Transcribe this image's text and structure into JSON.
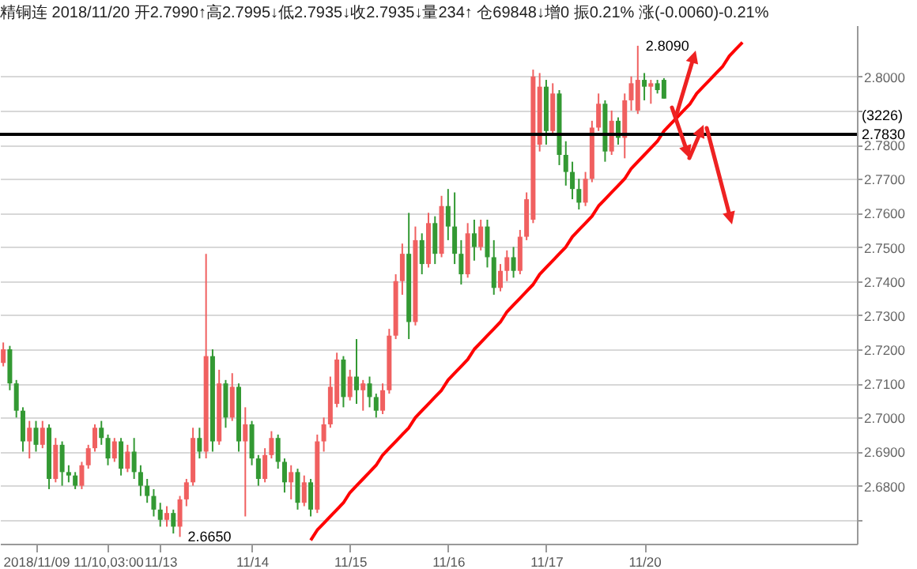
{
  "chart_data": {
    "type": "candlestick",
    "title": "精铜连 2018/11/20 开2.7990↑高2.7995↓低2.7935↓收2.7935↓量234↑ 仓69848↓增0 振0.21% 涨(-0.0060)-0.21%",
    "categories": [
      null,
      null,
      null,
      null,
      null,
      "2018/11/09",
      null,
      null,
      null,
      null,
      null,
      null,
      null,
      null,
      null,
      null,
      "11/10,03:00",
      null,
      null,
      null,
      null,
      null,
      null,
      null,
      "11/13",
      null,
      null,
      null,
      null,
      null,
      null,
      null,
      null,
      null,
      null,
      null,
      null,
      null,
      "11/14",
      null,
      null,
      null,
      null,
      null,
      null,
      null,
      null,
      null,
      null,
      null,
      null,
      null,
      null,
      "11/15",
      null,
      null,
      null,
      null,
      null,
      null,
      null,
      null,
      null,
      null,
      null,
      null,
      null,
      null,
      "11/16",
      null,
      null,
      null,
      null,
      null,
      null,
      null,
      null,
      null,
      null,
      null,
      null,
      null,
      null,
      "11/17",
      null,
      null,
      null,
      null,
      null,
      null,
      null,
      null,
      null,
      null,
      null,
      null,
      null,
      null,
      "11/20",
      null,
      null,
      null,
      null,
      null,
      null,
      null,
      null,
      null,
      null,
      null,
      null,
      null,
      null,
      null,
      null,
      null,
      null,
      null,
      null,
      null,
      null,
      null,
      null,
      null,
      null,
      null,
      null,
      null,
      null,
      null,
      null
    ],
    "ohlc": [
      [
        2.716,
        2.722,
        2.715,
        2.72
      ],
      [
        2.72,
        2.721,
        2.708,
        2.71
      ],
      [
        2.71,
        2.711,
        2.7,
        2.702
      ],
      [
        2.702,
        2.703,
        2.69,
        2.693
      ],
      [
        2.693,
        2.699,
        2.688,
        2.697
      ],
      [
        2.697,
        2.699,
        2.69,
        2.692
      ],
      [
        2.692,
        2.699,
        2.691,
        2.697
      ],
      [
        2.697,
        2.698,
        2.679,
        2.682
      ],
      [
        2.682,
        2.694,
        2.681,
        2.692
      ],
      [
        2.692,
        2.693,
        2.68,
        2.684
      ],
      [
        2.684,
        2.686,
        2.681,
        2.683
      ],
      [
        2.683,
        2.684,
        2.679,
        2.68
      ],
      [
        2.68,
        2.687,
        2.679,
        2.686
      ],
      [
        2.686,
        2.692,
        2.685,
        2.691
      ],
      [
        2.691,
        2.698,
        2.69,
        2.697
      ],
      [
        2.697,
        2.699,
        2.692,
        2.694
      ],
      [
        2.694,
        2.695,
        2.686,
        2.688
      ],
      [
        2.688,
        2.694,
        2.687,
        2.693
      ],
      [
        2.693,
        2.694,
        2.683,
        2.685
      ],
      [
        2.685,
        2.692,
        2.684,
        2.69
      ],
      [
        2.69,
        2.694,
        2.682,
        2.684
      ],
      [
        2.684,
        2.686,
        2.677,
        2.68
      ],
      [
        2.68,
        2.682,
        2.675,
        2.677
      ],
      [
        2.677,
        2.679,
        2.671,
        2.673
      ],
      [
        2.673,
        2.675,
        2.668,
        2.67
      ],
      [
        2.67,
        2.674,
        2.668,
        2.672
      ],
      [
        2.672,
        2.673,
        2.666,
        2.668
      ],
      [
        2.668,
        2.677,
        2.665,
        2.676
      ],
      [
        2.676,
        2.682,
        2.674,
        2.681
      ],
      [
        2.681,
        2.697,
        2.68,
        2.694
      ],
      [
        2.694,
        2.697,
        2.688,
        2.69
      ],
      [
        2.69,
        2.748,
        2.688,
        2.718
      ],
      [
        2.718,
        2.72,
        2.69,
        2.693
      ],
      [
        2.693,
        2.714,
        2.692,
        2.71
      ],
      [
        2.71,
        2.711,
        2.697,
        2.7
      ],
      [
        2.7,
        2.713,
        2.699,
        2.709
      ],
      [
        2.709,
        2.71,
        2.69,
        2.693
      ],
      [
        2.693,
        2.703,
        2.671,
        2.698
      ],
      [
        2.698,
        2.699,
        2.686,
        2.688
      ],
      [
        2.688,
        2.689,
        2.68,
        2.682
      ],
      [
        2.682,
        2.691,
        2.681,
        2.689
      ],
      [
        2.689,
        2.696,
        2.688,
        2.694
      ],
      [
        2.694,
        2.695,
        2.685,
        2.687
      ],
      [
        2.687,
        2.688,
        2.678,
        2.681
      ],
      [
        2.681,
        2.686,
        2.676,
        2.684
      ],
      [
        2.684,
        2.685,
        2.673,
        2.675
      ],
      [
        2.675,
        2.683,
        2.674,
        2.681
      ],
      [
        2.681,
        2.682,
        2.671,
        2.673
      ],
      [
        2.673,
        2.695,
        2.672,
        2.693
      ],
      [
        2.693,
        2.7,
        2.69,
        2.698
      ],
      [
        2.698,
        2.712,
        2.697,
        2.709
      ],
      [
        2.704,
        2.719,
        2.703,
        2.717
      ],
      [
        2.717,
        2.718,
        2.703,
        2.706
      ],
      [
        2.706,
        2.714,
        2.705,
        2.712
      ],
      [
        2.712,
        2.723,
        2.704,
        2.708
      ],
      [
        2.708,
        2.711,
        2.702,
        2.71
      ],
      [
        2.71,
        2.712,
        2.703,
        2.706
      ],
      [
        2.706,
        2.707,
        2.7,
        2.702
      ],
      [
        2.702,
        2.71,
        2.701,
        2.708
      ],
      [
        2.708,
        2.726,
        2.707,
        2.724
      ],
      [
        2.724,
        2.742,
        2.723,
        2.74
      ],
      [
        2.74,
        2.751,
        2.736,
        2.748
      ],
      [
        2.748,
        2.76,
        2.723,
        2.728
      ],
      [
        2.728,
        2.756,
        2.727,
        2.752
      ],
      [
        2.752,
        2.754,
        2.742,
        2.745
      ],
      [
        2.745,
        2.76,
        2.744,
        2.757
      ],
      [
        2.757,
        2.759,
        2.745,
        2.748
      ],
      [
        2.748,
        2.765,
        2.747,
        2.762
      ],
      [
        2.762,
        2.767,
        2.752,
        2.756
      ],
      [
        2.756,
        2.766,
        2.745,
        2.748
      ],
      [
        2.748,
        2.752,
        2.739,
        2.742
      ],
      [
        2.742,
        2.757,
        2.741,
        2.754
      ],
      [
        2.754,
        2.758,
        2.746,
        2.75
      ],
      [
        2.75,
        2.758,
        2.749,
        2.756
      ],
      [
        2.756,
        2.758,
        2.744,
        2.747
      ],
      [
        2.747,
        2.752,
        2.736,
        2.738
      ],
      [
        2.738,
        2.745,
        2.737,
        2.743
      ],
      [
        2.743,
        2.749,
        2.74,
        2.747
      ],
      [
        2.747,
        2.75,
        2.741,
        2.743
      ],
      [
        2.743,
        2.755,
        2.742,
        2.753
      ],
      [
        2.753,
        2.766,
        2.752,
        2.764
      ],
      [
        2.758,
        2.802,
        2.757,
        2.8
      ],
      [
        2.78,
        2.801,
        2.778,
        2.797
      ],
      [
        2.797,
        2.799,
        2.78,
        2.784
      ],
      [
        2.784,
        2.798,
        2.783,
        2.795
      ],
      [
        2.795,
        2.796,
        2.774,
        2.777
      ],
      [
        2.777,
        2.781,
        2.768,
        2.772
      ],
      [
        2.772,
        2.775,
        2.764,
        2.767
      ],
      [
        2.767,
        2.77,
        2.761,
        2.763
      ],
      [
        2.763,
        2.772,
        2.762,
        2.77
      ],
      [
        2.77,
        2.787,
        2.769,
        2.785
      ],
      [
        2.785,
        2.795,
        2.784,
        2.792
      ],
      [
        2.792,
        2.793,
        2.775,
        2.778
      ],
      [
        2.778,
        2.79,
        2.777,
        2.787
      ],
      [
        2.787,
        2.788,
        2.78,
        2.782
      ],
      [
        2.782,
        2.795,
        2.776,
        2.793
      ],
      [
        2.793,
        2.8,
        2.79,
        2.798
      ],
      [
        2.79,
        2.809,
        2.789,
        2.799
      ],
      [
        2.799,
        2.801,
        2.793,
        2.797
      ],
      [
        2.797,
        2.799,
        2.792,
        2.798
      ],
      [
        2.798,
        2.799,
        2.795,
        2.796
      ],
      [
        2.799,
        2.7995,
        2.7935,
        2.7935
      ],
      null,
      null,
      null,
      null,
      null,
      null,
      null,
      null,
      null,
      null,
      null,
      null,
      null,
      null,
      null,
      null,
      null,
      null,
      null,
      null,
      null,
      null,
      null,
      null,
      null,
      null,
      null,
      null,
      null
    ],
    "colors": [
      "#f06060",
      "#339933",
      "#339933",
      "#339933",
      "#f06060",
      "#339933",
      "#f06060",
      "#339933",
      "#f06060",
      "#339933",
      "#339933",
      "#339933",
      "#f06060",
      "#f06060",
      "#f06060",
      "#339933",
      "#339933",
      "#f06060",
      "#339933",
      "#f06060",
      "#339933",
      "#339933",
      "#339933",
      "#339933",
      "#339933",
      "#f06060",
      "#339933",
      "#f06060",
      "#f06060",
      "#f06060",
      "#339933",
      "#f06060",
      "#339933",
      "#f06060",
      "#339933",
      "#f06060",
      "#339933",
      "#f06060",
      "#339933",
      "#339933",
      "#f06060",
      "#f06060",
      "#339933",
      "#339933",
      "#f06060",
      "#339933",
      "#f06060",
      "#339933",
      "#f06060",
      "#f06060",
      "#f06060",
      "#f06060",
      "#339933",
      "#f06060",
      "#339933",
      "#f06060",
      "#339933",
      "#339933",
      "#f06060",
      "#f06060",
      "#f06060",
      "#f06060",
      "#339933",
      "#f06060",
      "#339933",
      "#f06060",
      "#339933",
      "#f06060",
      "#339933",
      "#339933",
      "#339933",
      "#f06060",
      "#339933",
      "#f06060",
      "#339933",
      "#339933",
      "#f06060",
      "#f06060",
      "#339933",
      "#f06060",
      "#f06060",
      "#f06060",
      "#f06060",
      "#339933",
      "#f06060",
      "#339933",
      "#339933",
      "#339933",
      "#339933",
      "#f06060",
      "#f06060",
      "#f06060",
      "#339933",
      "#f06060",
      "#339933",
      "#f06060",
      "#f06060",
      "#f06060",
      "#339933",
      "#f06060",
      "#339933",
      "#339933",
      null,
      null,
      null,
      null,
      null,
      null,
      null,
      null,
      null,
      null,
      null,
      null,
      null,
      null,
      null,
      null,
      null,
      null,
      null,
      null,
      null,
      null,
      null,
      null,
      null,
      null,
      null,
      null,
      null
    ],
    "series": [
      {
        "type": "line",
        "color": "#ff0000",
        "values": [
          null,
          null,
          null,
          null,
          null,
          null,
          null,
          null,
          null,
          null,
          null,
          null,
          null,
          null,
          null,
          null,
          null,
          null,
          null,
          null,
          null,
          null,
          null,
          null,
          null,
          null,
          null,
          null,
          null,
          null,
          null,
          null,
          null,
          null,
          null,
          null,
          null,
          null,
          null,
          null,
          null,
          null,
          null,
          null,
          null,
          null,
          null,
          2.664,
          2.667,
          2.669,
          2.671,
          2.673,
          2.675,
          2.678,
          2.68,
          2.682,
          2.684,
          2.686,
          2.689,
          2.691,
          2.693,
          2.695,
          2.697,
          2.7,
          2.702,
          2.704,
          2.706,
          2.708,
          2.711,
          2.713,
          2.715,
          2.717,
          2.72,
          2.722,
          2.724,
          2.726,
          2.728,
          2.731,
          2.733,
          2.735,
          2.737,
          2.739,
          2.742,
          2.744,
          2.746,
          2.748,
          2.75,
          2.753,
          2.755,
          2.757,
          2.759,
          2.762,
          2.764,
          2.766,
          2.768,
          2.77,
          2.773,
          2.775,
          2.777,
          2.779,
          2.781,
          2.784,
          2.786,
          2.788,
          2.79,
          2.792,
          2.795,
          2.797,
          2.799,
          2.801,
          2.803,
          2.806,
          2.808,
          2.81,
          null,
          null,
          null,
          null,
          null,
          null,
          null,
          null,
          null,
          null,
          null,
          null,
          null,
          null,
          null,
          null,
          null
        ]
      }
    ],
    "ylim": [
      2.663,
      2.815
    ],
    "yticks": [
      {
        "value": 2.67,
        "label": null
      },
      {
        "value": 2.68,
        "label": "2.6800"
      },
      {
        "value": 2.69,
        "label": "2.6900"
      },
      {
        "value": 2.7,
        "label": "2.7000"
      },
      {
        "value": 2.71,
        "label": "2.7100"
      },
      {
        "value": 2.72,
        "label": "2.7200"
      },
      {
        "value": 2.73,
        "label": "2.7300"
      },
      {
        "value": 2.74,
        "label": "2.7400"
      },
      {
        "value": 2.75,
        "label": "2.7500"
      },
      {
        "value": 2.76,
        "label": "2.7600"
      },
      {
        "value": 2.77,
        "label": "2.7700"
      },
      {
        "value": 2.78,
        "label": "2.7800"
      },
      {
        "value": 2.79,
        "label": null
      },
      {
        "value": 2.8,
        "label": "2.8000"
      }
    ],
    "grid": "y",
    "ref_lines": [
      {
        "axis": "y",
        "value": 2.783,
        "label": "2.7830",
        "color": "#000000"
      }
    ],
    "annotations": [
      "2.8090",
      "2.6650",
      "(3226)"
    ]
  }
}
